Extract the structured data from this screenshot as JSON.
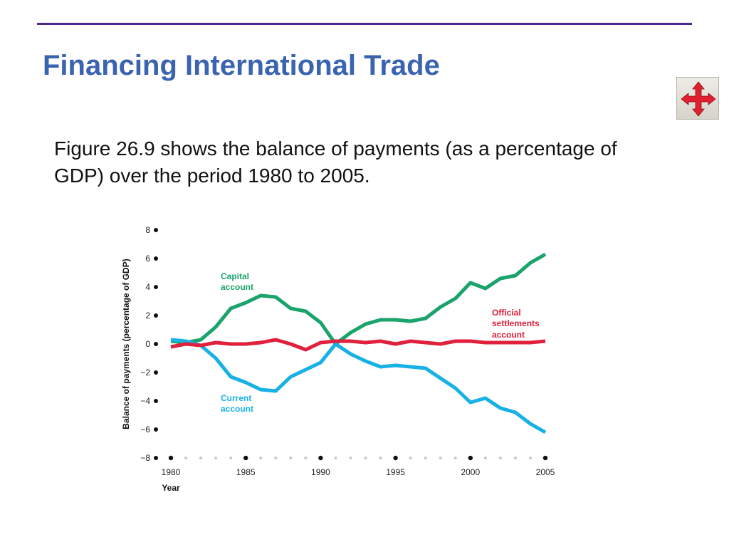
{
  "slide": {
    "title": "Financing International Trade",
    "body": "Figure 26.9 shows the balance of payments (as a percentage of GDP) over the period 1980 to 2005.",
    "nav_icon": "four-way-arrow-icon",
    "colors": {
      "title": "#3a63b0",
      "rule": "#4b2a8c",
      "nav_arrow": "#e0202e"
    }
  },
  "chart_data": {
    "type": "line",
    "xlabel": "Year",
    "ylabel": "Balance of payments (percentage of GDP)",
    "xlim": [
      1980,
      2005
    ],
    "ylim": [
      -8,
      8
    ],
    "x_ticks": [
      1980,
      1985,
      1990,
      1995,
      2000,
      2005
    ],
    "y_ticks": [
      8,
      6,
      4,
      2,
      0,
      -2,
      -4,
      -6,
      -8
    ],
    "y_tick_labels": [
      "8",
      "6",
      "4",
      "2",
      "0",
      "−2",
      "−4",
      "−6",
      "−8"
    ],
    "x": [
      1980,
      1981,
      1982,
      1983,
      1984,
      1985,
      1986,
      1987,
      1988,
      1989,
      1990,
      1991,
      1992,
      1993,
      1994,
      1995,
      1996,
      1997,
      1998,
      1999,
      2000,
      2001,
      2002,
      2003,
      2004,
      2005
    ],
    "series": [
      {
        "name": "Capital account",
        "color": "#1aa36a",
        "values": [
          0.2,
          0.1,
          0.3,
          1.2,
          2.5,
          2.9,
          3.4,
          3.3,
          2.5,
          2.3,
          1.5,
          0.0,
          0.8,
          1.4,
          1.7,
          1.7,
          1.6,
          1.8,
          2.6,
          3.2,
          4.3,
          3.9,
          4.6,
          4.8,
          5.7,
          6.3
        ]
      },
      {
        "name": "Official settlements account",
        "color": "#e0203c",
        "values": [
          -0.2,
          0.0,
          -0.1,
          0.1,
          0.0,
          0.0,
          0.1,
          0.3,
          0.0,
          -0.4,
          0.1,
          0.2,
          0.2,
          0.1,
          0.2,
          0.0,
          0.2,
          0.1,
          0.0,
          0.2,
          0.2,
          0.1,
          0.1,
          0.1,
          0.1,
          0.2
        ]
      },
      {
        "name": "Current account",
        "color": "#18b1e5",
        "values": [
          0.3,
          0.2,
          -0.1,
          -1.0,
          -2.3,
          -2.7,
          -3.2,
          -3.3,
          -2.3,
          -1.8,
          -1.3,
          0.0,
          -0.7,
          -1.2,
          -1.6,
          -1.5,
          -1.6,
          -1.7,
          -2.4,
          -3.1,
          -4.1,
          -3.8,
          -4.5,
          -4.8,
          -5.6,
          -6.2
        ]
      }
    ],
    "labels": {
      "capital": [
        "Capital",
        "account"
      ],
      "official": [
        "Official",
        "settlements",
        "account"
      ],
      "current": [
        "Current",
        "account"
      ]
    }
  }
}
